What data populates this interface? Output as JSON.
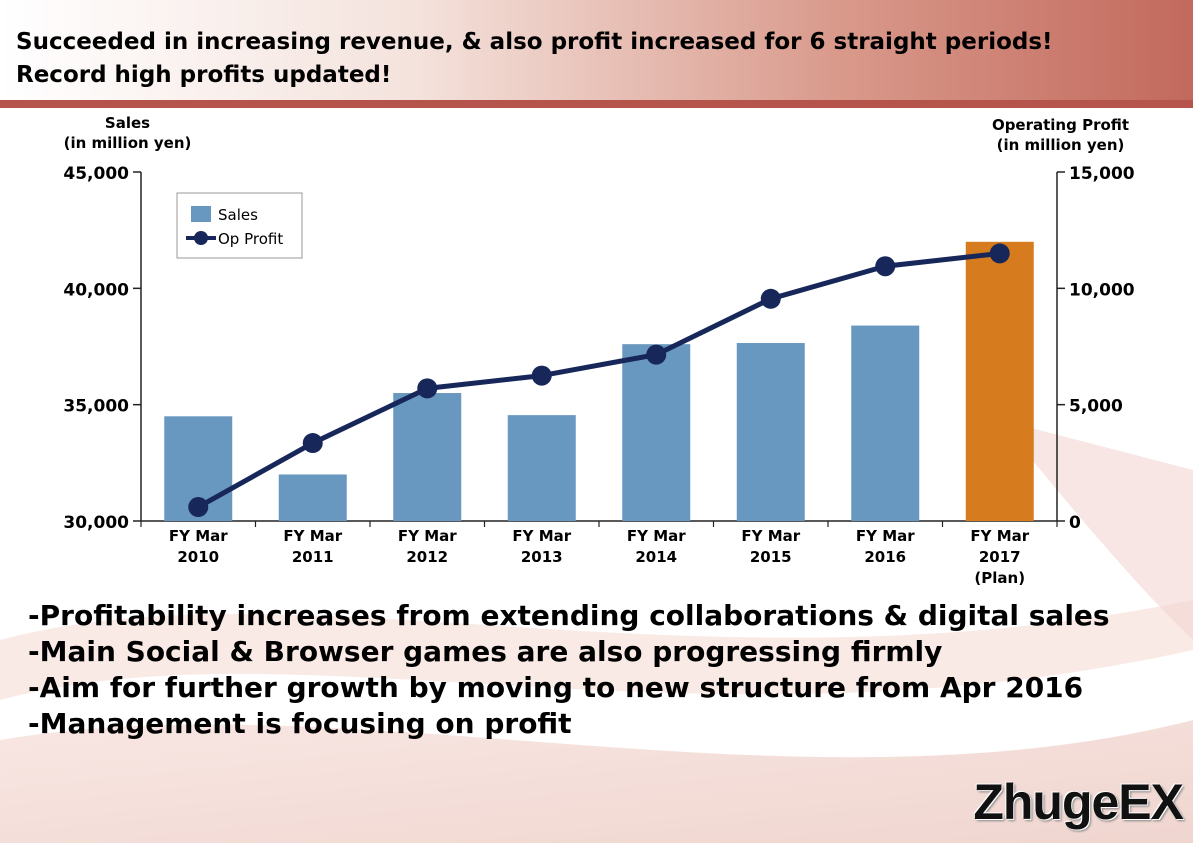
{
  "header": {
    "line1": "Succeeded in increasing revenue, & also profit increased for 6 straight periods!",
    "line2": "Record high profits updated!"
  },
  "colors": {
    "sales_bar": "#6897bf",
    "plan_bar": "#d67b1e",
    "profit_line": "#17275a",
    "header_band": "#c6786c"
  },
  "chart_data": {
    "type": "bar",
    "categories": [
      [
        "FY Mar",
        "2010"
      ],
      [
        "FY Mar",
        "2011"
      ],
      [
        "FY Mar",
        "2012"
      ],
      [
        "FY Mar",
        "2013"
      ],
      [
        "FY Mar",
        "2014"
      ],
      [
        "FY Mar",
        "2015"
      ],
      [
        "FY Mar",
        "2016"
      ],
      [
        "FY Mar",
        "2017",
        "(Plan)"
      ]
    ],
    "y_left_title": [
      "Sales",
      "(in million yen)"
    ],
    "y_right_title": [
      "Operating Profit",
      "(in million yen)"
    ],
    "y_left_range": [
      30000,
      45000
    ],
    "y_left_ticks": [
      "30,000",
      "35,000",
      "40,000",
      "45,000"
    ],
    "y_right_range": [
      0,
      15000
    ],
    "y_right_ticks": [
      "0",
      "5,000",
      "10,000",
      "15,000"
    ],
    "legend_position": "top-left",
    "series": [
      {
        "name": "Sales",
        "type": "bar",
        "axis": "left",
        "values": [
          34500,
          32000,
          35500,
          34550,
          37600,
          37650,
          38400,
          42000
        ],
        "highlight_index": 7
      },
      {
        "name": "Op Profit",
        "type": "line",
        "axis": "right",
        "values": [
          600,
          3350,
          5700,
          6250,
          7150,
          9550,
          10950,
          11500
        ]
      }
    ]
  },
  "bullets": [
    "-Profitability increases from extending collaborations & digital sales",
    "-Main Social & Browser games are also progressing firmly",
    "-Aim for further growth by moving to new structure from Apr 2016",
    "-Management is focusing on profit"
  ],
  "brand": "ZhugeEX"
}
